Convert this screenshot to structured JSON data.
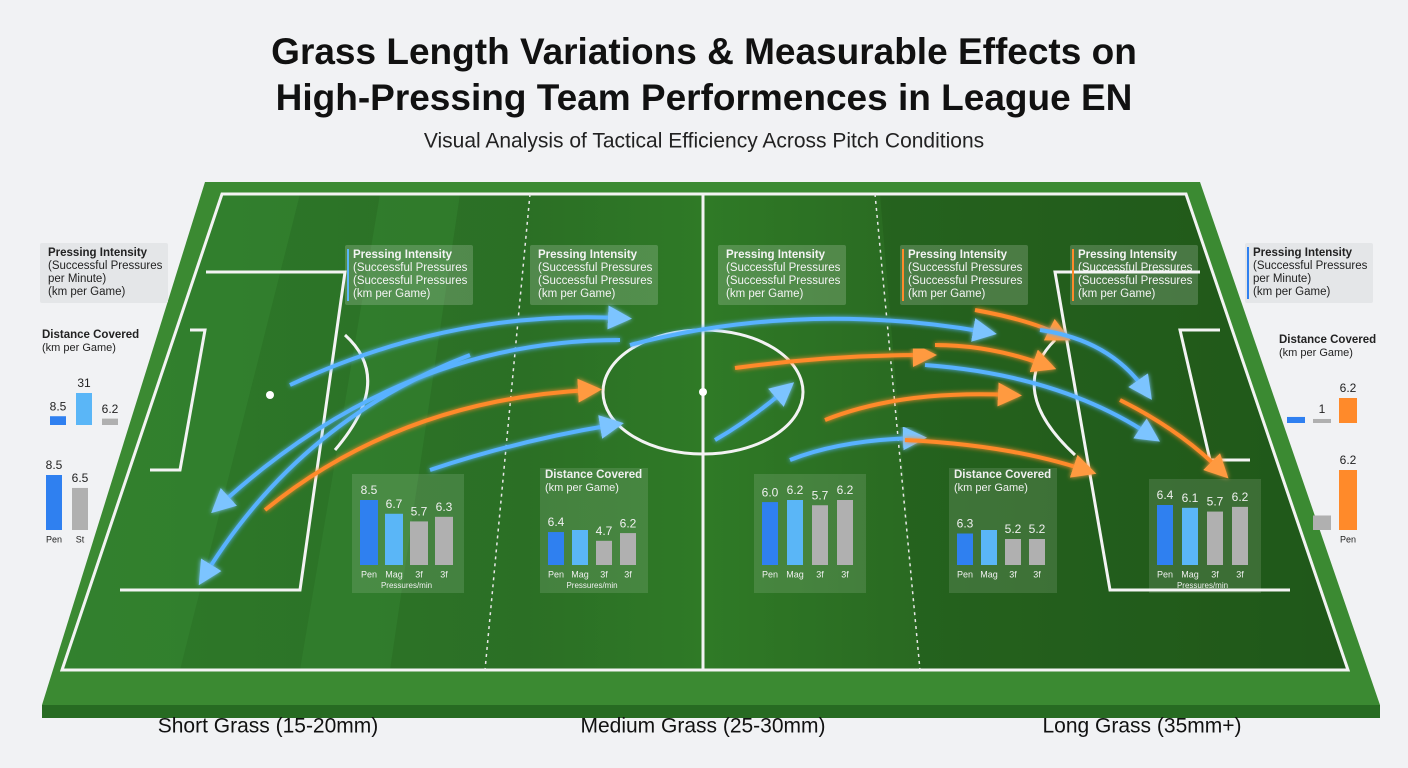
{
  "title_lines": [
    "Grass Length Variations & Measurable Effects on",
    "High-Pressing Team Performences in League EN"
  ],
  "subtitle": "Visual Analysis of Tactical Efficiency Across Pitch Conditions",
  "zones": [
    "Short Grass (15-20mm)",
    "Medium Grass (25-30mm)",
    "Long Grass (35mm+)"
  ],
  "info_boxes": [
    [
      "Pressing Intensity",
      "(Successful Pressures",
      "per Minute)",
      "(km per Game)"
    ],
    [
      "Pressing Intensity",
      "(Successful Pressures",
      "(Successful Pressures",
      "(km per Game)"
    ],
    [
      "Pressing Intensity",
      "(Successful Pressures",
      "(Successful Pressures",
      "(km per Game)"
    ],
    [
      "Pressing Intensity",
      "(Successful Pressures",
      "(Successful Pressures",
      "(km per Game)"
    ],
    [
      "Pressing Intensity",
      "(Successful Pressures",
      "(Successful Pressures",
      "(km per Game)"
    ],
    [
      "Pressing Intensity",
      "(Successful Pressures",
      "(Successful Pressures",
      "(km per Game)"
    ],
    [
      "Pressing Intensity",
      "(Successful Pressures",
      "per Minute)",
      "(km per Game)"
    ]
  ],
  "chart_data": [
    {
      "type": "bar",
      "title": "Distance Covered",
      "subtitle": "(km per Game)",
      "values": [
        8.5,
        31,
        6.2
      ],
      "value_labels": [
        "8.5",
        "31",
        "6.2"
      ],
      "colors": [
        "#2f80f0",
        "#5ab6f7",
        "#b0b0b0"
      ]
    },
    {
      "type": "bar",
      "categories": [
        "Pen",
        "St"
      ],
      "values": [
        8.5,
        6.5
      ],
      "value_labels": [
        "8.5",
        "6.5"
      ],
      "colors": [
        "#2f80f0",
        "#b0b0b0"
      ]
    },
    {
      "type": "bar",
      "categories": [
        "Pen",
        "Mag",
        "3f",
        "3f"
      ],
      "x_label": "Pressures/min",
      "values": [
        8.5,
        6.7,
        5.7,
        6.3
      ],
      "value_labels": [
        "8.5",
        "6.7",
        "5.7",
        "6.3"
      ],
      "colors": [
        "#2f80f0",
        "#5ab6f7",
        "#b0b0b0",
        "#b0b0b0"
      ]
    },
    {
      "type": "bar",
      "title": "Distance Covered",
      "subtitle": "(km per Game)",
      "categories": [
        "Pen",
        "Mag",
        "3f",
        "3f"
      ],
      "x_label": "Pressures/min",
      "values": [
        6.4,
        6.8,
        4.7,
        6.2
      ],
      "value_labels": [
        "6.4",
        null,
        "4.7",
        "6.2"
      ],
      "colors": [
        "#2f80f0",
        "#5ab6f7",
        "#b0b0b0",
        "#b0b0b0"
      ]
    },
    {
      "type": "bar",
      "categories": [
        "Pen",
        "Mag",
        "3f",
        "3f"
      ],
      "values": [
        6.0,
        6.2,
        5.7,
        6.2
      ],
      "value_labels": [
        "6.0",
        "6.2",
        "5.7",
        "6.2"
      ],
      "colors": [
        "#2f80f0",
        "#5ab6f7",
        "#b0b0b0",
        "#b0b0b0"
      ]
    },
    {
      "type": "bar",
      "title": "Distance Covered",
      "subtitle": "(km per Game)",
      "categories": [
        "Pen",
        "Mag",
        "3f",
        "3f"
      ],
      "values": [
        6.3,
        7.0,
        5.2,
        5.2
      ],
      "value_labels": [
        "6.3",
        null,
        "5.2",
        "5.2"
      ],
      "colors": [
        "#2f80f0",
        "#5ab6f7",
        "#b0b0b0",
        "#b0b0b0"
      ]
    },
    {
      "type": "bar",
      "categories": [
        "Pen",
        "Mag",
        "3f",
        "3f"
      ],
      "x_label": "Pressures/min",
      "values": [
        6.4,
        6.1,
        5.7,
        6.2
      ],
      "value_labels": [
        "6.4",
        "6.1",
        "5.7",
        "6.2"
      ],
      "colors": [
        "#2f80f0",
        "#5ab6f7",
        "#b0b0b0",
        "#b0b0b0"
      ]
    },
    {
      "type": "bar",
      "title": "Distance Covered",
      "subtitle": "(km per Game)",
      "values": [
        1.5,
        1,
        6.2
      ],
      "value_labels": [
        null,
        "1",
        "6.2"
      ],
      "colors": [
        "#2f80f0",
        "#b0b0b0",
        "#ff8a2a"
      ]
    },
    {
      "type": "bar",
      "categories": [
        null,
        "Pen"
      ],
      "values": [
        1.5,
        6.2
      ],
      "value_labels": [
        null,
        "6.2"
      ],
      "colors": [
        "#b0b0b0",
        "#ff8a2a"
      ]
    }
  ]
}
